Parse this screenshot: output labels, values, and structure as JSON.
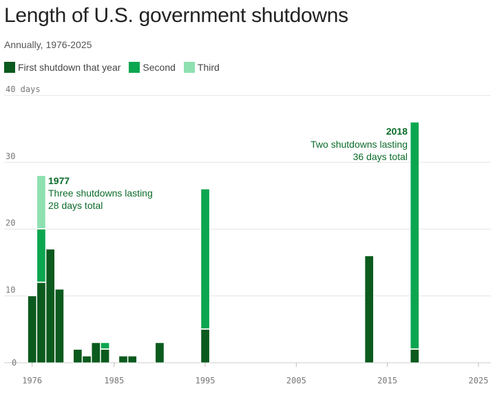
{
  "title": "Length of U.S. government shutdowns",
  "subtitle": "Annually, 1976-2025",
  "colors": {
    "first": "#0b5a1e",
    "second": "#0ba650",
    "third": "#8fe0b0",
    "grid": "#e3e3e3",
    "annotation": "#0b6b2a"
  },
  "chart_data": {
    "type": "bar",
    "stacked": true,
    "title": "Length of U.S. government shutdowns",
    "subtitle": "Annually, 1976-2025",
    "xlabel": "",
    "ylabel": "days",
    "xlim": [
      1976,
      2025
    ],
    "ylim": [
      0,
      40
    ],
    "xticks": [
      1976,
      1985,
      1995,
      2005,
      2015,
      2025
    ],
    "yticks": [
      0,
      10,
      20,
      30,
      40
    ],
    "ytick_labels": [
      "0",
      "10",
      "20",
      "30",
      "40 days"
    ],
    "grid": true,
    "legend_position": "top-left",
    "series": [
      {
        "name": "First shutdown that year",
        "key": "first"
      },
      {
        "name": "Second",
        "key": "second"
      },
      {
        "name": "Third",
        "key": "third"
      }
    ],
    "data": [
      {
        "year": 1976,
        "values": [
          10,
          0,
          0
        ]
      },
      {
        "year": 1977,
        "values": [
          12,
          8,
          8
        ]
      },
      {
        "year": 1978,
        "values": [
          17,
          0,
          0
        ]
      },
      {
        "year": 1979,
        "values": [
          11,
          0,
          0
        ]
      },
      {
        "year": 1981,
        "values": [
          2,
          0,
          0
        ]
      },
      {
        "year": 1982,
        "values": [
          1,
          0,
          0
        ]
      },
      {
        "year": 1983,
        "values": [
          3,
          0,
          0
        ]
      },
      {
        "year": 1984,
        "values": [
          2,
          1,
          0
        ]
      },
      {
        "year": 1986,
        "values": [
          1,
          0,
          0
        ]
      },
      {
        "year": 1987,
        "values": [
          1,
          0,
          0
        ]
      },
      {
        "year": 1990,
        "values": [
          3,
          0,
          0
        ]
      },
      {
        "year": 1995,
        "values": [
          5,
          21,
          0
        ]
      },
      {
        "year": 2013,
        "values": [
          16,
          0,
          0
        ]
      },
      {
        "year": 2018,
        "values": [
          2,
          34,
          0
        ]
      }
    ],
    "annotations": [
      {
        "year_label": "1977",
        "line1": "Three shutdowns lasting",
        "line2": "28 days total"
      },
      {
        "year_label": "2018",
        "line1": "Two shutdowns lasting",
        "line2": "36 days total"
      }
    ]
  }
}
